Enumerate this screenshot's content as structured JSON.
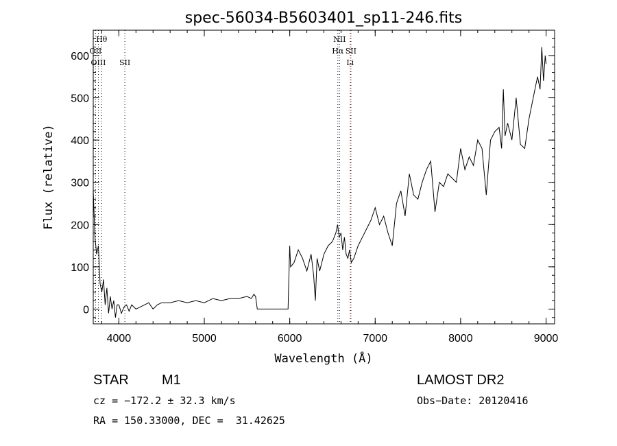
{
  "chart_data": {
    "type": "line",
    "title": "spec-56034-B5603401_sp11-246.fits",
    "xlabel": "Wavelength (Å)",
    "ylabel": "Flux (relative)",
    "xlim": [
      3700,
      9100
    ],
    "ylim": [
      -35,
      660
    ],
    "x_ticks": [
      4000,
      5000,
      6000,
      7000,
      8000,
      9000
    ],
    "y_ticks": [
      0,
      100,
      200,
      300,
      400,
      500,
      600
    ],
    "grid": false,
    "line_color": "#000000",
    "series": [
      {
        "x": [
          3700,
          3720,
          3740,
          3760,
          3780,
          3800,
          3820,
          3840,
          3860,
          3880,
          3900,
          3920,
          3940,
          3960,
          3980,
          4000,
          4030,
          4060,
          4090,
          4120,
          4150,
          4200,
          4250,
          4300,
          4350,
          4400,
          4450,
          4500,
          4600,
          4700,
          4800,
          4900,
          5000,
          5100,
          5200,
          5300,
          5400,
          5500,
          5550,
          5580,
          5600,
          5620,
          5650,
          5700,
          5800,
          5900,
          5980,
          6000,
          6010,
          6050,
          6100,
          6150,
          6200,
          6250,
          6280,
          6300,
          6320,
          6350,
          6400,
          6450,
          6500,
          6540,
          6560,
          6580,
          6600,
          6620,
          6640,
          6660,
          6680,
          6700,
          6720,
          6750,
          6800,
          6850,
          6900,
          6950,
          7000,
          7050,
          7100,
          7150,
          7200,
          7250,
          7300,
          7350,
          7400,
          7450,
          7500,
          7550,
          7600,
          7650,
          7700,
          7750,
          7800,
          7850,
          7900,
          7950,
          8000,
          8050,
          8100,
          8150,
          8200,
          8250,
          8300,
          8350,
          8400,
          8450,
          8480,
          8500,
          8520,
          8550,
          8600,
          8650,
          8700,
          8750,
          8800,
          8850,
          8900,
          8930,
          8950,
          8970,
          8990,
          9000
        ],
        "y": [
          280,
          170,
          130,
          150,
          60,
          40,
          70,
          10,
          50,
          -10,
          30,
          0,
          20,
          -20,
          10,
          10,
          -10,
          5,
          10,
          -5,
          10,
          0,
          5,
          10,
          15,
          0,
          10,
          15,
          15,
          20,
          15,
          20,
          15,
          25,
          20,
          25,
          25,
          30,
          25,
          35,
          30,
          0,
          0,
          0,
          0,
          0,
          0,
          150,
          100,
          110,
          140,
          120,
          90,
          130,
          80,
          20,
          120,
          90,
          130,
          150,
          160,
          180,
          200,
          170,
          180,
          140,
          170,
          130,
          120,
          140,
          110,
          120,
          150,
          170,
          190,
          210,
          240,
          200,
          220,
          180,
          150,
          250,
          280,
          220,
          320,
          270,
          260,
          300,
          330,
          350,
          230,
          300,
          290,
          320,
          310,
          300,
          380,
          330,
          360,
          340,
          400,
          380,
          270,
          400,
          420,
          430,
          380,
          520,
          410,
          440,
          400,
          500,
          390,
          380,
          450,
          500,
          550,
          520,
          620,
          540,
          600,
          580
        ]
      }
    ],
    "line_markers": [
      {
        "label": "Hθ",
        "x": 3798,
        "row": 0,
        "color": "#000000"
      },
      {
        "label": "OII",
        "x": 3727,
        "row": 1,
        "color": "#000000"
      },
      {
        "label": "OIII",
        "x": 3760,
        "row": 2,
        "color": "#000000"
      },
      {
        "label": "SII",
        "x": 4070,
        "row": 2,
        "color": "#000000"
      },
      {
        "label": "NII",
        "x": 6583,
        "row": 0,
        "color": "#000000"
      },
      {
        "label": "Hα",
        "x": 6563,
        "row": 1,
        "color": "#000000"
      },
      {
        "label": "SII",
        "x": 6716,
        "row": 1,
        "color": "#000000"
      },
      {
        "label": "Li",
        "x": 6707,
        "row": 2,
        "color": "#cc0000"
      }
    ]
  },
  "info": {
    "object_class": "STAR",
    "subclass": "M1",
    "survey": "LAMOST DR2",
    "cz": "cz = −172.2 ± 32.3 km/s",
    "obs_date": "Obs−Date: 20120416",
    "coords": "RA = 150.33000, DEC =  31.42625"
  }
}
